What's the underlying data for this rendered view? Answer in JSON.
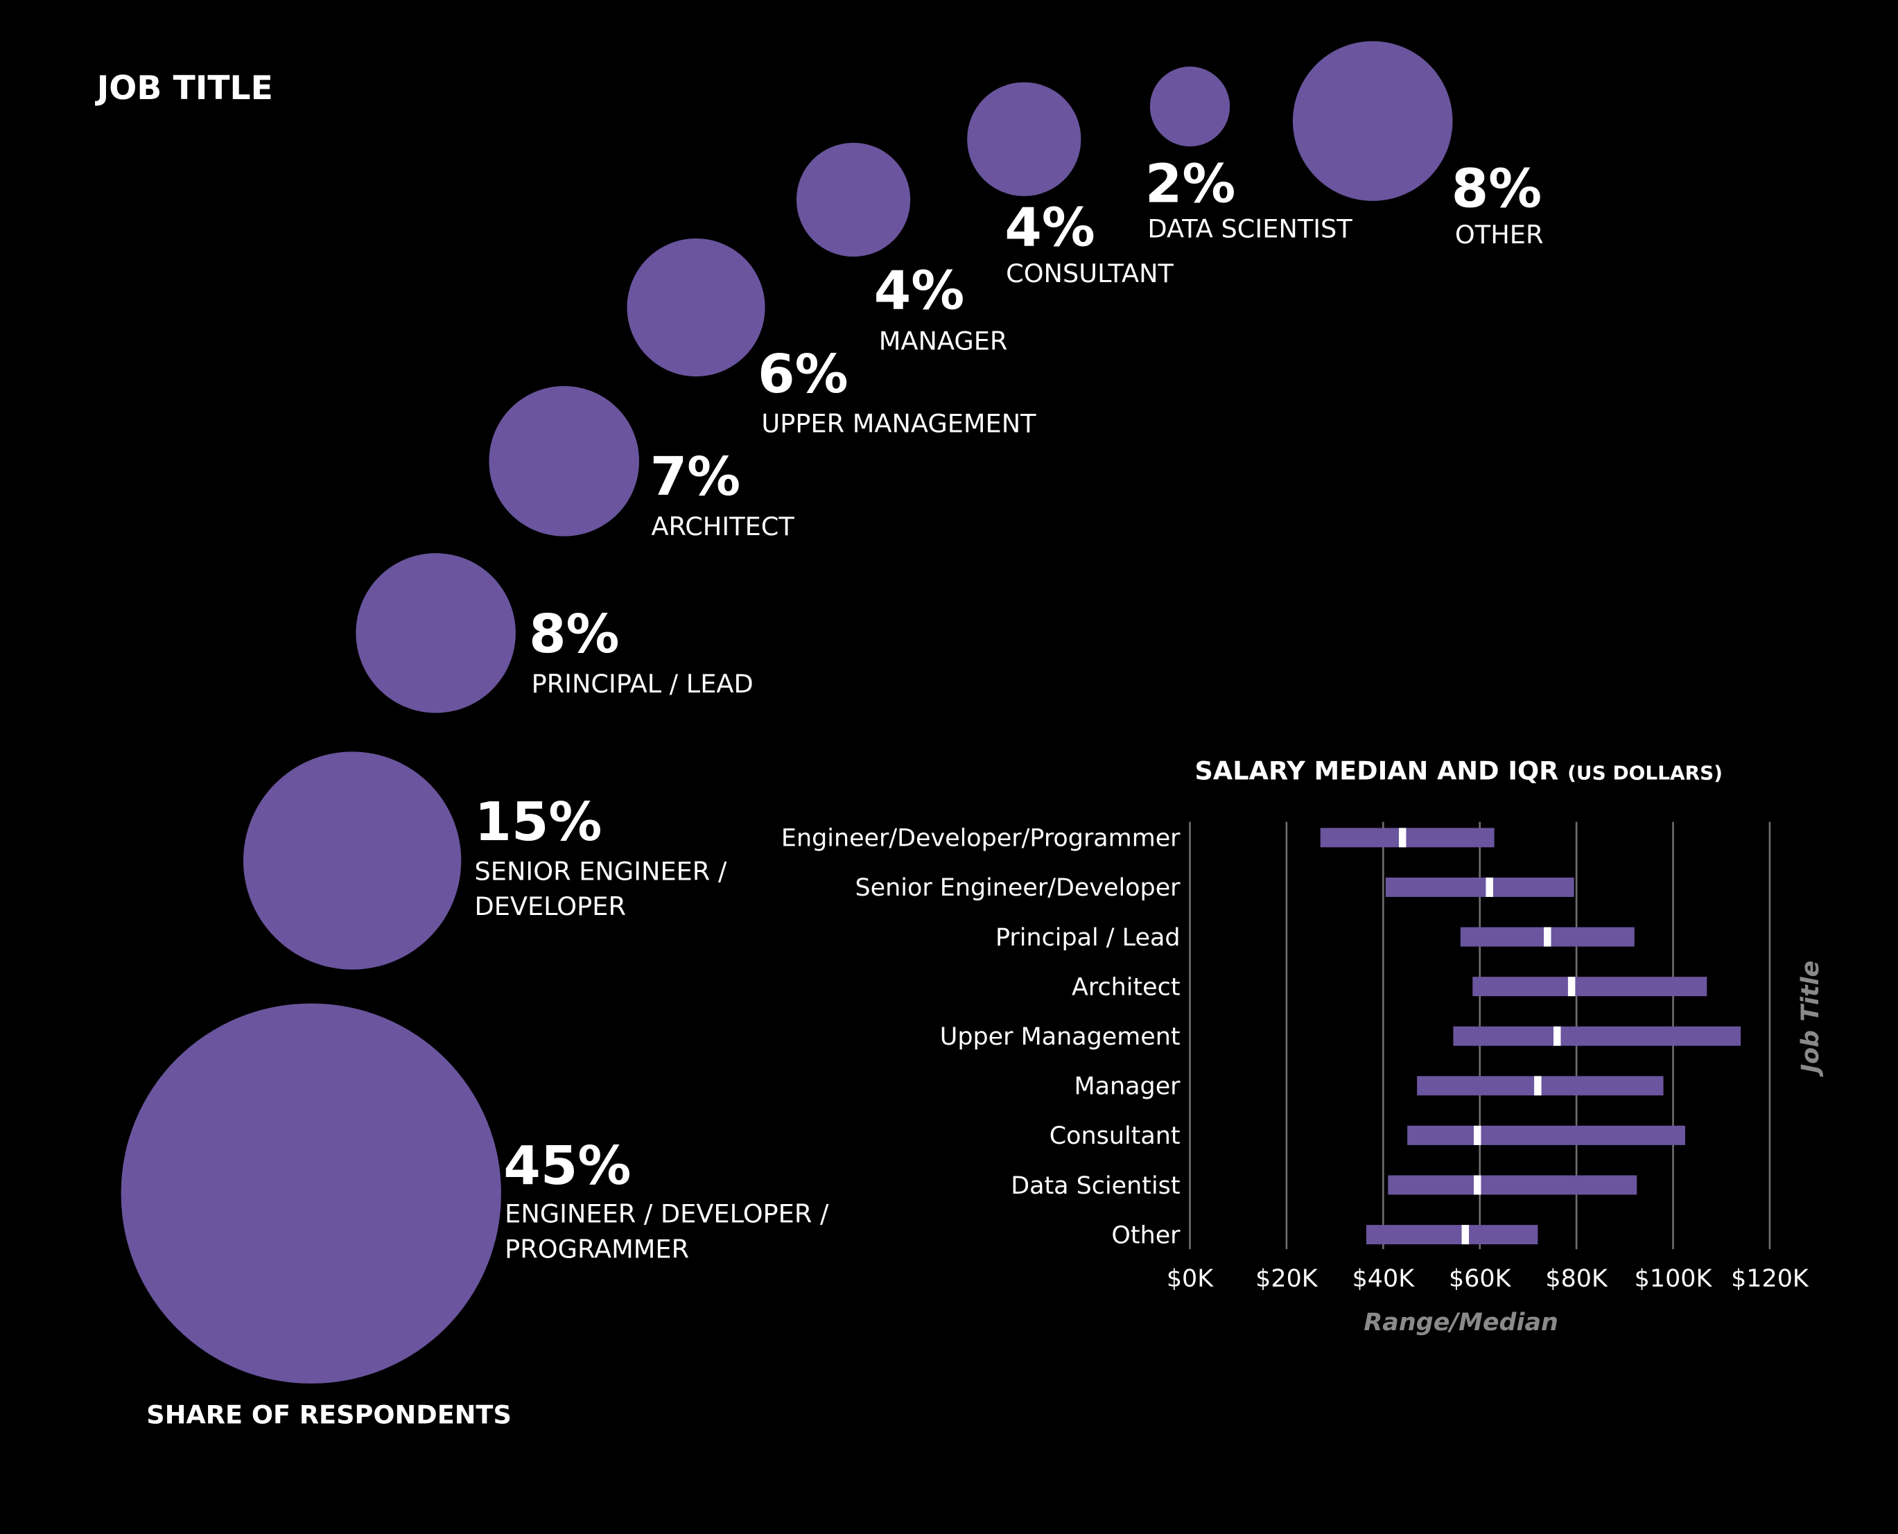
{
  "colors": {
    "background": "#000000",
    "bubble": "#6a559e",
    "bar": "#6a559e",
    "median_marker": "#ffffff",
    "gridline": "#6e6e6e",
    "axis_title": "#8a8a8a",
    "text": "#ffffff"
  },
  "headings": {
    "job_title": "JOB TITLE",
    "share_of_respondents": "SHARE OF RESPONDENTS",
    "salary_title": "SALARY MEDIAN AND IQR",
    "salary_unit": "(US DOLLARS)"
  },
  "chart_data": [
    {
      "type": "bubble",
      "title": "JOB TITLE",
      "caption": "SHARE OF RESPONDENTS",
      "unit": "%",
      "categories": [
        "ENGINEER / DEVELOPER / PROGRAMMER",
        "SENIOR ENGINEER / DEVELOPER",
        "PRINCIPAL / LEAD",
        "ARCHITECT",
        "UPPER MANAGEMENT",
        "MANAGER",
        "CONSULTANT",
        "DATA SCIENTIST",
        "OTHER"
      ],
      "values": [
        45,
        15,
        8,
        7,
        6,
        4,
        4,
        2,
        8
      ],
      "value_labels": [
        "45%",
        "15%",
        "8%",
        "7%",
        "6%",
        "4%",
        "4%",
        "2%",
        "8%"
      ]
    },
    {
      "type": "range",
      "title": "SALARY MEDIAN AND IQR (US DOLLARS)",
      "xlabel": "Range/Median",
      "ylabel": "Job Title",
      "xlim": [
        0,
        120000
      ],
      "xticks": [
        0,
        20000,
        40000,
        60000,
        80000,
        100000,
        120000
      ],
      "xtick_labels": [
        "$0K",
        "$20K",
        "$40K",
        "$60K",
        "$80K",
        "$100K",
        "$120K"
      ],
      "grid": true,
      "categories": [
        "Engineer/Developer/Programmer",
        "Senior Engineer/Developer",
        "Principal / Lead",
        "Architect",
        "Upper Management",
        "Manager",
        "Consultant",
        "Data Scientist",
        "Other"
      ],
      "q1": [
        27000,
        40500,
        56000,
        58500,
        54500,
        47000,
        45000,
        41000,
        36500
      ],
      "median": [
        44000,
        62000,
        74000,
        79000,
        76000,
        72000,
        59500,
        59500,
        57000
      ],
      "q3": [
        63000,
        79500,
        92000,
        107000,
        114000,
        98000,
        102500,
        92500,
        72000
      ]
    }
  ]
}
